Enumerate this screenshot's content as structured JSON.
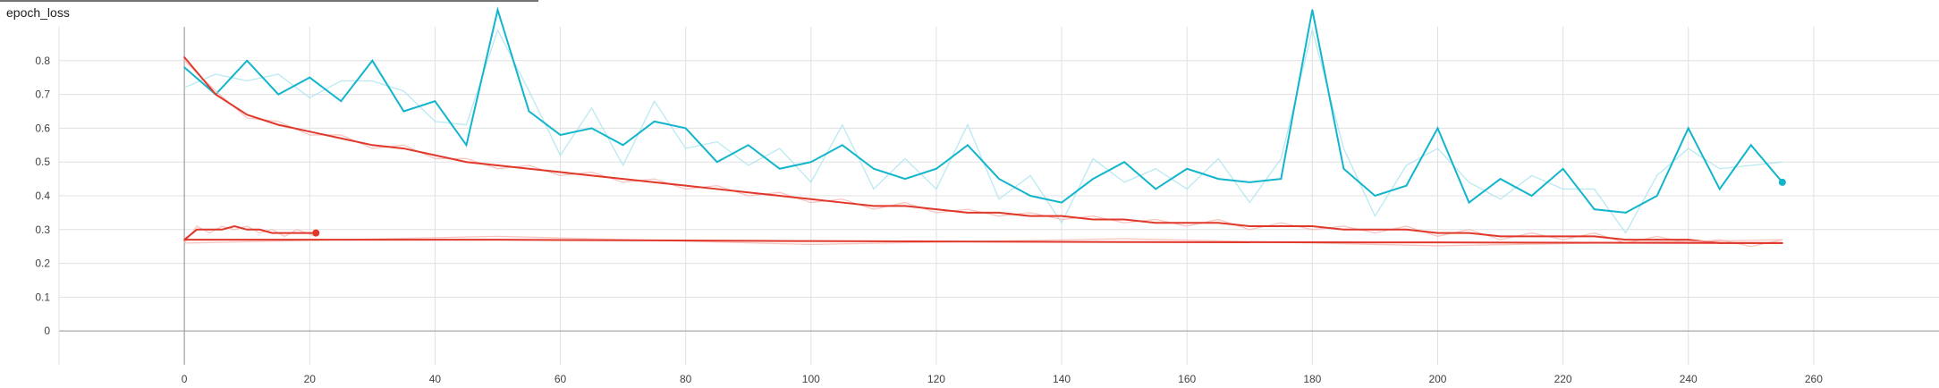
{
  "card": {
    "title": "epoch_loss"
  },
  "chart_data": {
    "type": "line",
    "title": "epoch_loss",
    "xlabel": "",
    "ylabel": "",
    "xlim": [
      -20,
      280
    ],
    "ylim": [
      -0.1,
      0.9
    ],
    "x_ticks": [
      0,
      20,
      40,
      60,
      80,
      100,
      120,
      140,
      160,
      180,
      200,
      220,
      240,
      260
    ],
    "y_ticks": [
      0,
      0.1,
      0.2,
      0.3,
      0.4,
      0.5,
      0.6,
      0.7,
      0.8
    ],
    "x_tick_labels": [
      "0",
      "20",
      "40",
      "60",
      "80",
      "100",
      "120",
      "140",
      "160",
      "180",
      "200",
      "220",
      "240",
      "260"
    ],
    "y_tick_labels": [
      "0",
      "0.1",
      "0.2",
      "0.3",
      "0.4",
      "0.5",
      "0.6",
      "0.7",
      "0.8"
    ],
    "grid": true,
    "smoothing_shown": true,
    "series": [
      {
        "color": "#12b5cb",
        "raw_color": "#a8e4ef",
        "end_marker": true,
        "x": [
          0,
          5,
          10,
          15,
          20,
          25,
          30,
          35,
          40,
          45,
          50,
          55,
          60,
          65,
          70,
          75,
          80,
          85,
          90,
          95,
          100,
          105,
          110,
          115,
          120,
          125,
          130,
          135,
          140,
          145,
          150,
          155,
          160,
          165,
          170,
          175,
          180,
          185,
          190,
          195,
          200,
          205,
          210,
          215,
          220,
          225,
          230,
          235,
          240,
          245,
          250,
          255
        ],
        "y": [
          0.78,
          0.7,
          0.8,
          0.7,
          0.75,
          0.68,
          0.8,
          0.65,
          0.68,
          0.55,
          0.95,
          0.65,
          0.58,
          0.6,
          0.55,
          0.62,
          0.6,
          0.5,
          0.55,
          0.48,
          0.5,
          0.55,
          0.48,
          0.45,
          0.48,
          0.55,
          0.45,
          0.4,
          0.38,
          0.45,
          0.5,
          0.42,
          0.48,
          0.45,
          0.44,
          0.45,
          0.95,
          0.48,
          0.4,
          0.43,
          0.6,
          0.38,
          0.45,
          0.4,
          0.48,
          0.36,
          0.35,
          0.4,
          0.6,
          0.42,
          0.55,
          0.44
        ]
      },
      {
        "color": "#e0382a",
        "raw_color": "#f5b7b1",
        "end_marker": false,
        "x": [
          0,
          5,
          10,
          15,
          20,
          25,
          30,
          35,
          40,
          45,
          50,
          55,
          60,
          65,
          70,
          75,
          80,
          85,
          90,
          95,
          100,
          105,
          110,
          115,
          120,
          125,
          130,
          135,
          140,
          145,
          150,
          155,
          160,
          165,
          170,
          175,
          180,
          185,
          190,
          195,
          200,
          205,
          210,
          215,
          220,
          225,
          230,
          235,
          240,
          245,
          250,
          255
        ],
        "y": [
          0.81,
          0.7,
          0.64,
          0.61,
          0.59,
          0.57,
          0.55,
          0.54,
          0.52,
          0.5,
          0.49,
          0.48,
          0.47,
          0.46,
          0.45,
          0.44,
          0.43,
          0.42,
          0.41,
          0.4,
          0.39,
          0.38,
          0.37,
          0.37,
          0.36,
          0.35,
          0.35,
          0.34,
          0.34,
          0.33,
          0.33,
          0.32,
          0.32,
          0.32,
          0.31,
          0.31,
          0.31,
          0.3,
          0.3,
          0.3,
          0.29,
          0.29,
          0.28,
          0.28,
          0.28,
          0.28,
          0.27,
          0.27,
          0.27,
          0.26,
          0.26,
          0.26
        ]
      },
      {
        "color": "#e0382a",
        "raw_color": "#f5b7b1",
        "end_marker": true,
        "x": [
          0,
          2,
          4,
          6,
          8,
          10,
          12,
          14,
          16,
          18,
          21
        ],
        "y": [
          0.27,
          0.3,
          0.3,
          0.3,
          0.31,
          0.3,
          0.3,
          0.29,
          0.29,
          0.29,
          0.29
        ]
      },
      {
        "color": "#e0382a",
        "raw_color": "#f5b7b1",
        "end_marker": false,
        "x": [
          0,
          50,
          100,
          150,
          200,
          255
        ],
        "y": [
          0.27,
          0.27,
          0.266,
          0.263,
          0.262,
          0.26
        ]
      }
    ]
  }
}
